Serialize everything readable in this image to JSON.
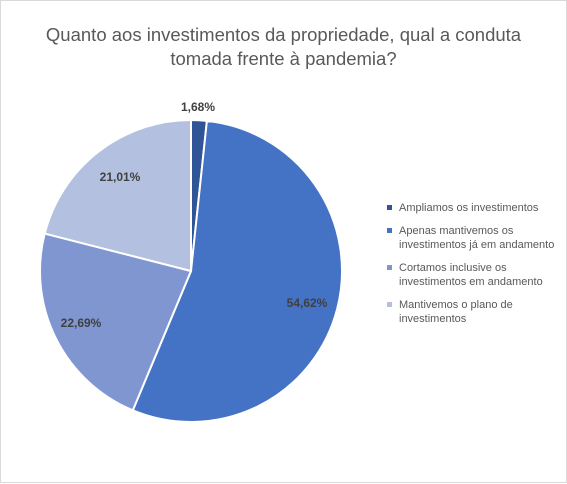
{
  "chart_data": {
    "type": "pie",
    "title": "Quanto aos investimentos da propriedade, qual a conduta tomada frente à pandemia?",
    "title_lines": [
      "Quanto aos investimentos da propriedade, qual a conduta",
      "tomada frente à pandemia?"
    ],
    "slices": [
      {
        "label": "Ampliamos os investimentos",
        "legend_lines": [
          "Ampliamos os investimentos"
        ],
        "value": 1.68,
        "value_label": "1,68%",
        "color": "#2f5597"
      },
      {
        "label": "Apenas mantivemos os investimentos já em andamento",
        "legend_lines": [
          "Apenas mantivemos os",
          "investimentos já em andamento"
        ],
        "value": 54.62,
        "value_label": "54,62%",
        "color": "#4472c4"
      },
      {
        "label": "Cortamos inclusive os investimentos em andamento",
        "legend_lines": [
          "Cortamos inclusive os",
          "investimentos em andamento"
        ],
        "value": 22.69,
        "value_label": "22,69%",
        "color": "#7f96d1"
      },
      {
        "label": "Mantivemos o plano de investimentos",
        "legend_lines": [
          "Mantivemos o plano de",
          "investimentos"
        ],
        "value": 21.01,
        "value_label": "21,01%",
        "color": "#b4c0e0"
      }
    ],
    "legend_position": "right",
    "start_angle": "12 o'clock, clockwise"
  }
}
